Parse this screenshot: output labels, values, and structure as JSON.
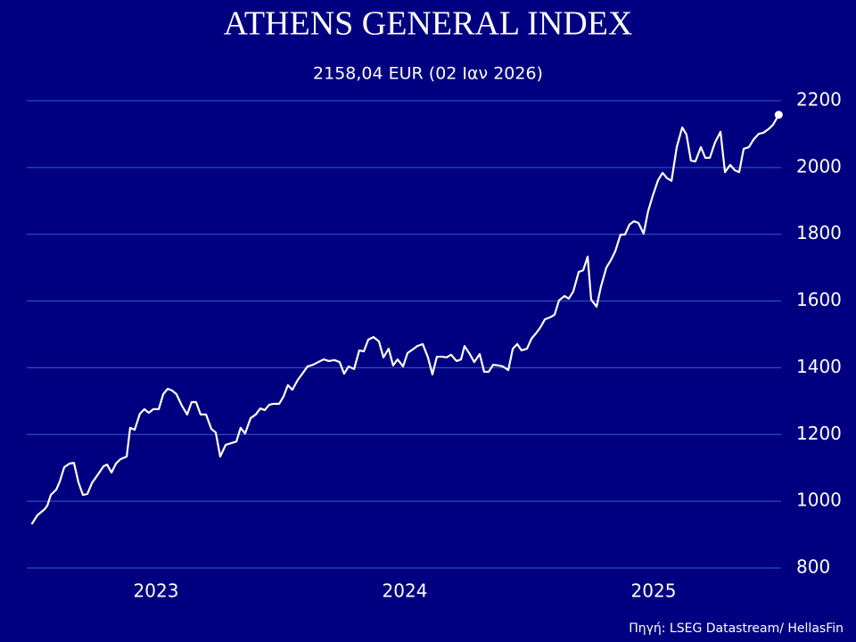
{
  "chart_data": {
    "type": "line",
    "title": "ATHENS GENERAL INDEX",
    "subtitle": "2158,04 EUR (02 Ιαν 2026)",
    "source": "Πηγή: LSEG Datastream/ HellasFin",
    "color": "#ffffff",
    "grid": true,
    "xlim": [
      2023,
      2026
    ],
    "xticks": [
      {
        "value": 2023.5,
        "label": "2023"
      },
      {
        "value": 2024.5,
        "label": "2024"
      },
      {
        "value": 2025.5,
        "label": "2025"
      }
    ],
    "ylim": [
      800,
      2200
    ],
    "yticks": [
      800,
      1000,
      1200,
      1400,
      1600,
      1800,
      2000,
      2200
    ],
    "x": [
      2023.0,
      2023.023,
      2023.052,
      2023.063,
      2023.077,
      2023.099,
      2023.113,
      2023.131,
      2023.152,
      2023.17,
      2023.188,
      2023.206,
      2023.224,
      2023.242,
      2023.267,
      2023.289,
      2023.303,
      2023.321,
      2023.339,
      2023.357,
      2023.382,
      2023.396,
      2023.414,
      2023.435,
      2023.453,
      2023.471,
      2023.489,
      2023.511,
      2023.529,
      2023.547,
      2023.564,
      2023.582,
      2023.604,
      2023.625,
      2023.643,
      2023.661,
      2023.679,
      2023.701,
      2023.722,
      2023.74,
      2023.758,
      2023.78,
      2023.801,
      2023.823,
      2023.84,
      2023.858,
      2023.88,
      2023.901,
      2023.919,
      2023.937,
      2023.955,
      2023.973,
      2023.995,
      2024.012,
      2024.03,
      2024.048,
      2024.07,
      2024.091,
      2024.109,
      2024.131,
      2024.152,
      2024.174,
      2024.195,
      2024.217,
      2024.238,
      2024.256,
      2024.274,
      2024.296,
      2024.317,
      2024.335,
      2024.353,
      2024.374,
      2024.396,
      2024.414,
      2024.435,
      2024.453,
      2024.471,
      2024.493,
      2024.511,
      2024.532,
      2024.55,
      2024.572,
      2024.593,
      2024.611,
      2024.629,
      2024.65,
      2024.668,
      2024.686,
      2024.708,
      2024.726,
      2024.74,
      2024.761,
      2024.779,
      2024.801,
      2024.819,
      2024.837,
      2024.855,
      2024.876,
      2024.894,
      2024.916,
      2024.934,
      2024.952,
      2024.969,
      2024.991,
      2025.009,
      2025.027,
      2025.045,
      2025.063,
      2025.084,
      2025.102,
      2025.12,
      2025.142,
      2025.159,
      2025.177,
      2025.199,
      2025.217,
      2025.235,
      2025.249,
      2025.271,
      2025.288,
      2025.31,
      2025.328,
      2025.346,
      2025.367,
      2025.385,
      2025.403,
      2025.421,
      2025.439,
      2025.46,
      2025.478,
      2025.496,
      2025.518,
      2025.536,
      2025.554,
      2025.572,
      2025.593,
      2025.615,
      2025.632,
      2025.65,
      2025.668,
      2025.69,
      2025.708,
      2025.726,
      2025.747,
      2025.769,
      2025.787,
      2025.808,
      2025.826,
      2025.844,
      2025.862,
      2025.883,
      2025.901,
      2025.923,
      2025.941,
      2025.962,
      2025.98,
      2026.003
    ],
    "values": [
      931,
      958,
      976,
      987,
      1019,
      1035,
      1059,
      1102,
      1113,
      1115,
      1057,
      1019,
      1022,
      1054,
      1081,
      1105,
      1110,
      1086,
      1113,
      1126,
      1134,
      1220,
      1214,
      1262,
      1276,
      1265,
      1276,
      1276,
      1321,
      1337,
      1332,
      1321,
      1286,
      1260,
      1297,
      1297,
      1260,
      1260,
      1217,
      1206,
      1134,
      1169,
      1174,
      1179,
      1220,
      1203,
      1249,
      1260,
      1278,
      1273,
      1289,
      1292,
      1292,
      1313,
      1348,
      1334,
      1364,
      1385,
      1404,
      1409,
      1417,
      1425,
      1420,
      1423,
      1417,
      1382,
      1404,
      1396,
      1452,
      1449,
      1484,
      1492,
      1479,
      1431,
      1457,
      1407,
      1425,
      1404,
      1444,
      1455,
      1465,
      1471,
      1431,
      1380,
      1433,
      1433,
      1431,
      1439,
      1420,
      1425,
      1465,
      1441,
      1417,
      1441,
      1388,
      1388,
      1409,
      1407,
      1404,
      1393,
      1457,
      1471,
      1452,
      1457,
      1487,
      1503,
      1521,
      1545,
      1551,
      1559,
      1602,
      1615,
      1607,
      1628,
      1687,
      1692,
      1733,
      1604,
      1583,
      1642,
      1700,
      1722,
      1749,
      1799,
      1799,
      1829,
      1839,
      1834,
      1802,
      1869,
      1914,
      1962,
      1984,
      1968,
      1960,
      2061,
      2120,
      2099,
      2021,
      2018,
      2061,
      2029,
      2029,
      2075,
      2107,
      1986,
      2008,
      1992,
      1986,
      2056,
      2061,
      2083,
      2101,
      2104,
      2115,
      2128,
      2158.04
    ]
  }
}
